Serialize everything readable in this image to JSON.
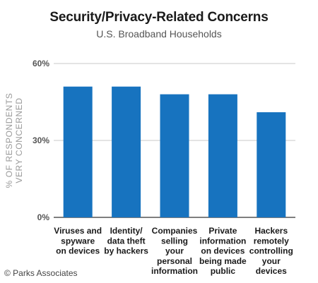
{
  "chart_data": {
    "type": "bar",
    "title": "Security/Privacy-Related Concerns",
    "subtitle": "U.S. Broadband Households",
    "ylabel_lines": [
      "% OF RESPONDENTS",
      "VERY CONCERNED"
    ],
    "xlabel": "",
    "ylim": [
      0,
      60
    ],
    "yticks": [
      {
        "value": 0,
        "label": "0%"
      },
      {
        "value": 30,
        "label": "30%"
      },
      {
        "value": 60,
        "label": "60%"
      }
    ],
    "grid": true,
    "legend": "none",
    "bar_color": "#1773bf",
    "categories": [
      {
        "lines": [
          "Viruses and",
          "spyware",
          "on devices"
        ]
      },
      {
        "lines": [
          "Identity/",
          "data theft",
          "by hackers"
        ]
      },
      {
        "lines": [
          "Companies",
          "selling",
          "your",
          "personal",
          "information"
        ]
      },
      {
        "lines": [
          "Private",
          "information",
          "on devices",
          "being made",
          "public"
        ]
      },
      {
        "lines": [
          "Hackers",
          "remotely",
          "controlling",
          "your",
          "devices"
        ]
      }
    ],
    "values": [
      51,
      51,
      48,
      48,
      41
    ]
  },
  "credit": "© Parks Associates"
}
